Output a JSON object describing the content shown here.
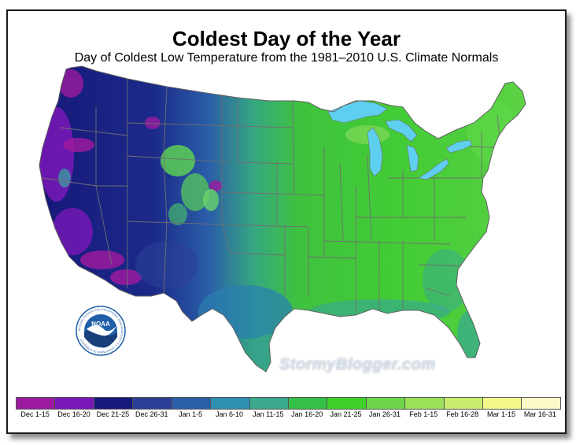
{
  "header": {
    "title": "Coldest Day of the Year",
    "subtitle": "Day of Coldest Low Temperature from the 1981–2010 U.S. Climate Normals"
  },
  "watermark": "StormyBlogger.com",
  "logo": {
    "name": "noaa-logo",
    "text": "NOAA",
    "ring_text": "NATIONAL OCEANIC AND ATMOSPHERIC ADMINISTRATION • U.S. DEPARTMENT OF COMMERCE",
    "colors": {
      "ring": "#ffffff",
      "sky": "#1f5ea8",
      "bird": "#ffffff",
      "sea": "#173f7a"
    }
  },
  "legend": [
    {
      "label": "Dec 1-15",
      "color": "#9b1a9e"
    },
    {
      "label": "Dec 16-20",
      "color": "#7a17b8"
    },
    {
      "label": "Dec 21-25",
      "color": "#17197a"
    },
    {
      "label": "Dec 26-31",
      "color": "#2c3f96"
    },
    {
      "label": "Jan 1-5",
      "color": "#2a5fa8"
    },
    {
      "label": "Jan 6-10",
      "color": "#2f8fb0"
    },
    {
      "label": "Jan 11-15",
      "color": "#3aa98c"
    },
    {
      "label": "Jan 16-20",
      "color": "#35c04a"
    },
    {
      "label": "Jan 21-25",
      "color": "#3fd02a"
    },
    {
      "label": "Jan 26-31",
      "color": "#6ed64a"
    },
    {
      "label": "Feb 1-15",
      "color": "#9ce05a"
    },
    {
      "label": "Feb 16-28",
      "color": "#c8ec70"
    },
    {
      "label": "Mar 1-15",
      "color": "#f2f78a"
    },
    {
      "label": "Mar 16-31",
      "color": "#fbf9c8"
    }
  ],
  "lake_color": "#5fcff0",
  "border_color": "#707070"
}
